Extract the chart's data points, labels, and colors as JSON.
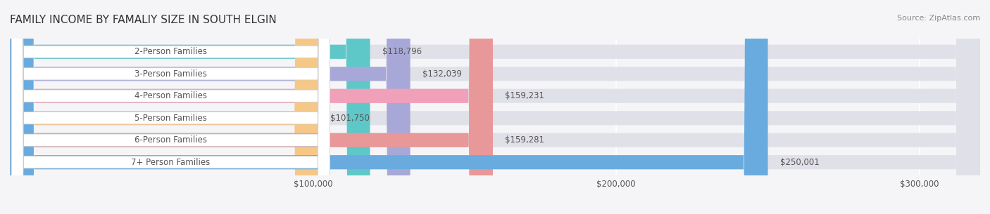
{
  "title": "FAMILY INCOME BY FAMALIY SIZE IN SOUTH ELGIN",
  "source": "Source: ZipAtlas.com",
  "categories": [
    "2-Person Families",
    "3-Person Families",
    "4-Person Families",
    "5-Person Families",
    "6-Person Families",
    "7+ Person Families"
  ],
  "values": [
    118796,
    132039,
    159231,
    101750,
    159281,
    250001
  ],
  "labels": [
    "$118,796",
    "$132,039",
    "$159,231",
    "$101,750",
    "$159,281",
    "$250,001"
  ],
  "bar_colors": [
    "#5ec8c8",
    "#a8a8d8",
    "#f0a0b8",
    "#f5c888",
    "#e89898",
    "#6aabdf"
  ],
  "bar_bg_color": "#e8e8f0",
  "xlim": [
    0,
    320000
  ],
  "xticks": [
    0,
    100000,
    200000,
    300000
  ],
  "xtick_labels": [
    "",
    "$100,000",
    "$200,000",
    "$300,000"
  ],
  "background_color": "#f5f5f8",
  "grid_color": "#ffffff",
  "bar_height": 0.62,
  "label_color": "#555555",
  "title_color": "#333333",
  "title_fontsize": 11,
  "source_fontsize": 8,
  "category_fontsize": 8.5,
  "value_fontsize": 8.5,
  "tick_fontsize": 8.5
}
